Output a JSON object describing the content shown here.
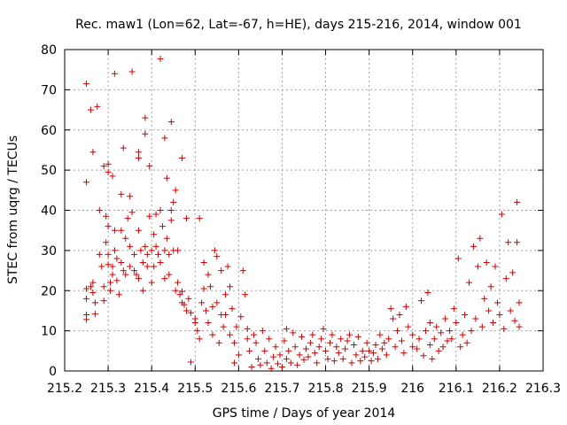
{
  "chart_data": {
    "type": "scatter",
    "title": "Rec. maw1 (Lon=62, Lat=-67, h=HE), days 215-216, 2014, window 001",
    "xlabel": "GPS time / Days of year 2014",
    "ylabel": "STEC from uqrg / TECUs",
    "xlim": [
      215.2,
      216.3
    ],
    "ylim": [
      0,
      80
    ],
    "xticks": [
      "215.2",
      "215.3",
      "215.4",
      "215.5",
      "215.6",
      "215.7",
      "215.8",
      "215.9",
      "216",
      "216.1",
      "216.2",
      "216.3"
    ],
    "yticks": [
      "0",
      "10",
      "20",
      "30",
      "40",
      "50",
      "60",
      "70",
      "80"
    ],
    "grid": true,
    "marker": "plus",
    "color": "#cc0000",
    "points": [
      [
        215.25,
        71.5
      ],
      [
        215.25,
        47
      ],
      [
        215.26,
        65
      ],
      [
        215.265,
        54.5
      ],
      [
        215.275,
        65.8
      ],
      [
        215.29,
        51
      ],
      [
        215.3,
        49.5
      ],
      [
        215.3,
        51.5
      ],
      [
        215.31,
        48.5
      ],
      [
        215.315,
        74
      ],
      [
        215.33,
        44
      ],
      [
        215.335,
        55.5
      ],
      [
        215.35,
        43.5
      ],
      [
        215.355,
        74.5
      ],
      [
        215.37,
        54.5
      ],
      [
        215.37,
        53
      ],
      [
        215.385,
        63
      ],
      [
        215.385,
        59
      ],
      [
        215.395,
        51
      ],
      [
        215.42,
        77.7
      ],
      [
        215.43,
        58
      ],
      [
        215.435,
        48
      ],
      [
        215.445,
        62
      ],
      [
        215.455,
        45
      ],
      [
        215.47,
        53
      ],
      [
        215.48,
        38
      ],
      [
        215.51,
        38
      ],
      [
        215.25,
        20.5
      ],
      [
        215.25,
        18
      ],
      [
        215.25,
        14
      ],
      [
        215.25,
        12.8
      ],
      [
        215.26,
        21
      ],
      [
        215.265,
        22
      ],
      [
        215.265,
        19.5
      ],
      [
        215.27,
        17
      ],
      [
        215.27,
        14.2
      ],
      [
        215.28,
        29
      ],
      [
        215.28,
        40
      ],
      [
        215.285,
        26
      ],
      [
        215.29,
        21
      ],
      [
        215.29,
        17.5
      ],
      [
        215.295,
        38.5
      ],
      [
        215.295,
        32
      ],
      [
        215.3,
        36
      ],
      [
        215.3,
        29
      ],
      [
        215.3,
        26.5
      ],
      [
        215.305,
        22
      ],
      [
        215.305,
        20
      ],
      [
        215.31,
        26
      ],
      [
        215.31,
        24
      ],
      [
        215.315,
        35
      ],
      [
        215.315,
        30
      ],
      [
        215.32,
        28
      ],
      [
        215.32,
        22.5
      ],
      [
        215.325,
        19
      ],
      [
        215.33,
        35
      ],
      [
        215.33,
        27
      ],
      [
        215.335,
        25
      ],
      [
        215.34,
        33
      ],
      [
        215.34,
        24
      ],
      [
        215.345,
        38
      ],
      [
        215.35,
        31
      ],
      [
        215.35,
        26
      ],
      [
        215.355,
        39.5
      ],
      [
        215.36,
        29
      ],
      [
        215.36,
        25
      ],
      [
        215.365,
        24
      ],
      [
        215.37,
        35
      ],
      [
        215.37,
        23
      ],
      [
        215.375,
        30
      ],
      [
        215.38,
        27
      ],
      [
        215.38,
        20
      ],
      [
        215.385,
        31
      ],
      [
        215.39,
        29
      ],
      [
        215.39,
        26
      ],
      [
        215.395,
        38.5
      ],
      [
        215.4,
        30
      ],
      [
        215.4,
        22
      ],
      [
        215.405,
        34
      ],
      [
        215.405,
        26
      ],
      [
        215.41,
        31
      ],
      [
        215.41,
        39
      ],
      [
        215.415,
        29
      ],
      [
        215.42,
        40
      ],
      [
        215.42,
        27
      ],
      [
        215.425,
        36
      ],
      [
        215.43,
        30
      ],
      [
        215.43,
        23
      ],
      [
        215.435,
        33
      ],
      [
        215.44,
        29
      ],
      [
        215.44,
        24
      ],
      [
        215.445,
        40
      ],
      [
        215.445,
        37.5
      ],
      [
        215.45,
        42
      ],
      [
        215.45,
        30
      ],
      [
        215.455,
        20
      ],
      [
        215.46,
        22
      ],
      [
        215.46,
        30
      ],
      [
        215.465,
        19
      ],
      [
        215.47,
        17
      ],
      [
        215.47,
        19.8
      ],
      [
        215.475,
        16.5
      ],
      [
        215.48,
        15
      ],
      [
        215.485,
        18
      ],
      [
        215.49,
        14.5
      ],
      [
        215.5,
        13
      ],
      [
        215.5,
        12
      ],
      [
        215.49,
        2.2
      ],
      [
        215.505,
        10
      ],
      [
        215.51,
        8
      ],
      [
        215.515,
        17
      ],
      [
        215.52,
        27
      ],
      [
        215.52,
        20.5
      ],
      [
        215.525,
        15
      ],
      [
        215.53,
        24
      ],
      [
        215.53,
        12
      ],
      [
        215.535,
        21
      ],
      [
        215.54,
        16
      ],
      [
        215.54,
        9
      ],
      [
        215.545,
        30
      ],
      [
        215.55,
        28.5
      ],
      [
        215.55,
        17
      ],
      [
        215.555,
        7
      ],
      [
        215.56,
        14
      ],
      [
        215.56,
        25
      ],
      [
        215.565,
        11
      ],
      [
        215.57,
        19
      ],
      [
        215.57,
        14
      ],
      [
        215.575,
        26
      ],
      [
        215.58,
        21
      ],
      [
        215.58,
        9
      ],
      [
        215.585,
        15.5
      ],
      [
        215.59,
        7
      ],
      [
        215.59,
        2
      ],
      [
        215.595,
        11
      ],
      [
        215.6,
        4
      ],
      [
        215.605,
        13.5
      ],
      [
        215.61,
        25
      ],
      [
        215.615,
        19
      ],
      [
        215.62,
        8
      ],
      [
        215.62,
        10.5
      ],
      [
        215.625,
        5
      ],
      [
        215.63,
        1
      ],
      [
        215.635,
        9
      ],
      [
        215.64,
        7
      ],
      [
        215.645,
        3
      ],
      [
        215.65,
        1.5
      ],
      [
        215.655,
        10
      ],
      [
        215.66,
        5
      ],
      [
        215.665,
        2
      ],
      [
        215.67,
        8
      ],
      [
        215.675,
        0.6
      ],
      [
        215.68,
        3.5
      ],
      [
        215.685,
        6
      ],
      [
        215.69,
        1.8
      ],
      [
        215.695,
        4
      ],
      [
        215.7,
        1
      ],
      [
        215.705,
        7.5
      ],
      [
        215.71,
        10.5
      ],
      [
        215.71,
        3
      ],
      [
        215.715,
        5
      ],
      [
        215.72,
        2
      ],
      [
        215.725,
        9.5
      ],
      [
        215.73,
        6
      ],
      [
        215.735,
        1.5
      ],
      [
        215.74,
        4
      ],
      [
        215.745,
        8.5
      ],
      [
        215.75,
        2.8
      ],
      [
        215.755,
        5.5
      ],
      [
        215.76,
        3.5
      ],
      [
        215.765,
        7
      ],
      [
        215.77,
        9
      ],
      [
        215.775,
        4.5
      ],
      [
        215.78,
        2
      ],
      [
        215.785,
        6
      ],
      [
        215.79,
        8
      ],
      [
        215.795,
        10.5
      ],
      [
        215.8,
        5
      ],
      [
        215.805,
        3
      ],
      [
        215.81,
        7
      ],
      [
        215.815,
        9
      ],
      [
        215.82,
        2.5
      ],
      [
        215.825,
        6
      ],
      [
        215.83,
        4.5
      ],
      [
        215.835,
        8
      ],
      [
        215.84,
        3
      ],
      [
        215.845,
        5.5
      ],
      [
        215.85,
        7.5
      ],
      [
        215.855,
        9
      ],
      [
        215.86,
        2
      ],
      [
        215.865,
        6.5
      ],
      [
        215.87,
        4
      ],
      [
        215.875,
        8.5
      ],
      [
        215.88,
        2.5
      ],
      [
        215.885,
        5
      ],
      [
        215.89,
        3.5
      ],
      [
        215.895,
        7
      ],
      [
        215.9,
        5
      ],
      [
        215.905,
        2.5
      ],
      [
        215.91,
        4.5
      ],
      [
        215.915,
        6.5
      ],
      [
        215.92,
        3
      ],
      [
        215.925,
        9
      ],
      [
        215.93,
        5.5
      ],
      [
        215.935,
        7
      ],
      [
        215.94,
        4
      ],
      [
        215.945,
        8
      ],
      [
        215.95,
        15.5
      ],
      [
        215.955,
        13
      ],
      [
        215.96,
        6
      ],
      [
        215.965,
        10
      ],
      [
        215.97,
        14
      ],
      [
        215.975,
        7.5
      ],
      [
        215.98,
        4.5
      ],
      [
        215.985,
        16
      ],
      [
        215.99,
        11
      ],
      [
        216.0,
        9
      ],
      [
        216.0,
        6
      ],
      [
        216.01,
        5.5
      ],
      [
        216.015,
        8
      ],
      [
        216.02,
        17.5
      ],
      [
        216.025,
        3.8
      ],
      [
        216.03,
        10
      ],
      [
        216.035,
        19.5
      ],
      [
        216.04,
        12
      ],
      [
        216.04,
        6.5
      ],
      [
        216.045,
        3
      ],
      [
        216.05,
        8
      ],
      [
        216.055,
        11
      ],
      [
        216.06,
        5
      ],
      [
        216.065,
        9.5
      ],
      [
        216.07,
        6
      ],
      [
        216.075,
        13
      ],
      [
        216.08,
        7.5
      ],
      [
        216.085,
        10
      ],
      [
        216.09,
        8
      ],
      [
        216.095,
        15.5
      ],
      [
        216.1,
        12
      ],
      [
        216.105,
        28
      ],
      [
        216.11,
        6
      ],
      [
        216.115,
        9
      ],
      [
        216.12,
        14
      ],
      [
        216.125,
        7
      ],
      [
        216.13,
        22
      ],
      [
        216.135,
        10
      ],
      [
        216.14,
        31
      ],
      [
        216.145,
        13
      ],
      [
        216.15,
        26
      ],
      [
        216.155,
        33
      ],
      [
        216.16,
        11
      ],
      [
        216.165,
        18
      ],
      [
        216.17,
        27
      ],
      [
        216.175,
        15
      ],
      [
        216.18,
        21
      ],
      [
        216.185,
        12
      ],
      [
        216.19,
        26
      ],
      [
        216.195,
        17
      ],
      [
        216.2,
        14
      ],
      [
        216.205,
        39
      ],
      [
        216.21,
        10.5
      ],
      [
        216.215,
        23
      ],
      [
        216.22,
        32
      ],
      [
        216.225,
        15
      ],
      [
        216.23,
        24.5
      ],
      [
        216.235,
        12.5
      ],
      [
        216.24,
        42
      ],
      [
        216.24,
        32
      ],
      [
        216.245,
        17
      ],
      [
        216.245,
        11
      ]
    ]
  }
}
